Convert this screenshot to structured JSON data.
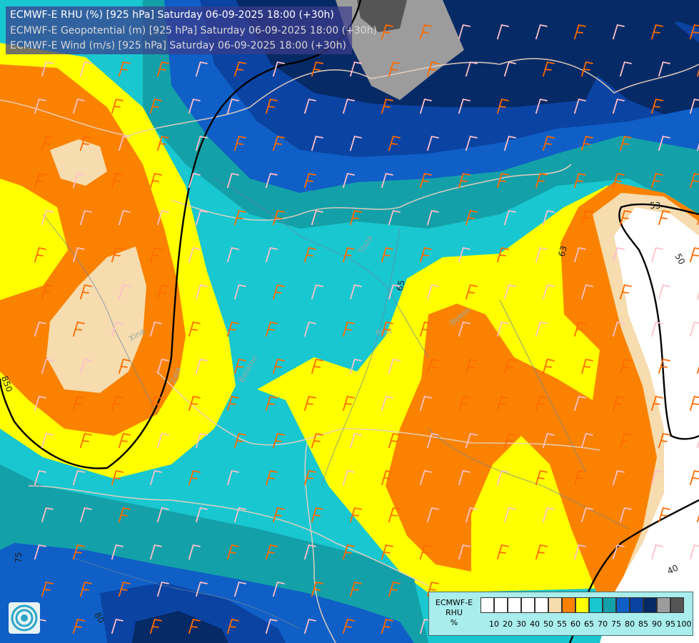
{
  "header": {
    "lines": [
      {
        "text": "ECMWF-E RHU (%) [925 hPa] Saturday 06-09-2025 18:00 (+30h)",
        "color": "#ffffff"
      },
      {
        "text": "ECMWF-E Geopotential (m) [925 hPa] Saturday 06-09-2025 18:00 (+30h)",
        "color": "#d8d8d8"
      },
      {
        "text": "ECMWF-E Wind (m/s) [925 hPa] Saturday 06-09-2025 18:00 (+30h)",
        "color": "#d8d8d8"
      }
    ]
  },
  "legend": {
    "title_lines": [
      "ECMWF-E",
      "RHU",
      "%"
    ],
    "bins": [
      {
        "from": 0,
        "to": 10,
        "color": "#ffffff"
      },
      {
        "from": 10,
        "to": 20,
        "color": "#ffffff"
      },
      {
        "from": 20,
        "to": 30,
        "color": "#ffffff"
      },
      {
        "from": 30,
        "to": 40,
        "color": "#ffffff"
      },
      {
        "from": 40,
        "to": 50,
        "color": "#ffffff"
      },
      {
        "from": 50,
        "to": 55,
        "color": "#f6dcae"
      },
      {
        "from": 55,
        "to": 60,
        "color": "#fa8200"
      },
      {
        "from": 60,
        "to": 65,
        "color": "#ffff00"
      },
      {
        "from": 65,
        "to": 70,
        "color": "#18c7cf"
      },
      {
        "from": 70,
        "to": 75,
        "color": "#14a0a8"
      },
      {
        "from": 75,
        "to": 80,
        "color": "#0f5fc6"
      },
      {
        "from": 80,
        "to": 85,
        "color": "#0a43a2"
      },
      {
        "from": 85,
        "to": 90,
        "color": "#062a66"
      },
      {
        "from": 90,
        "to": 95,
        "color": "#9c9c9c"
      },
      {
        "from": 95,
        "to": 100,
        "color": "#555555"
      }
    ],
    "ticks": [
      "10",
      "20",
      "30",
      "40",
      "50",
      "55",
      "60",
      "65",
      "70",
      "75",
      "80",
      "85",
      "90",
      "95",
      "100"
    ]
  },
  "contour_labels": [
    "850",
    "53",
    "50",
    "63",
    "65",
    "75",
    "80",
    "40"
  ],
  "place_labels": [
    "Pest",
    "Bekes",
    "Tisza",
    "Xina",
    "Zala",
    "Balaton"
  ],
  "wind_colors": {
    "strong": "#ff6a00",
    "light": "#ffc0cb"
  }
}
